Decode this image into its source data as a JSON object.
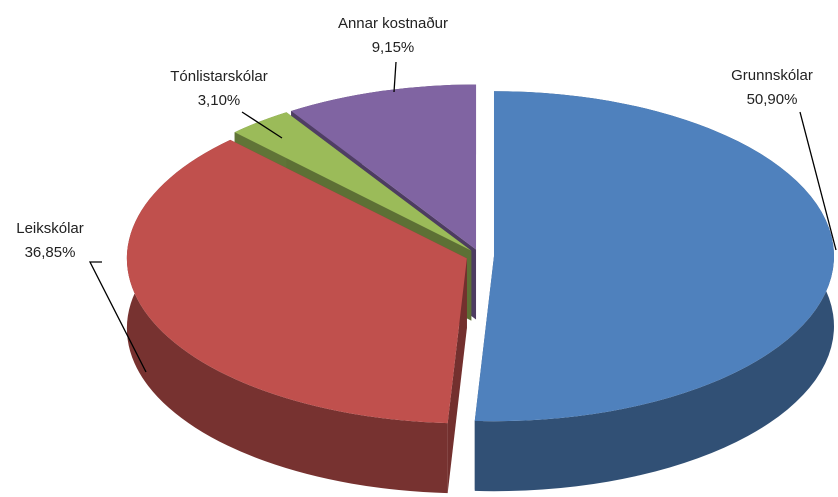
{
  "chart_data": {
    "type": "pie3d",
    "categories": [
      "Grunnskólar",
      "Leikskólar",
      "Tónlistarskólar",
      "Annar kostnaður"
    ],
    "values": [
      50.9,
      36.85,
      3.1,
      9.15
    ],
    "value_labels": [
      "50,90%",
      "36,85%",
      "3,10%",
      "9,15%"
    ],
    "colors": [
      "#4f81bd",
      "#c0504d",
      "#9bbb59",
      "#8064a2"
    ]
  }
}
